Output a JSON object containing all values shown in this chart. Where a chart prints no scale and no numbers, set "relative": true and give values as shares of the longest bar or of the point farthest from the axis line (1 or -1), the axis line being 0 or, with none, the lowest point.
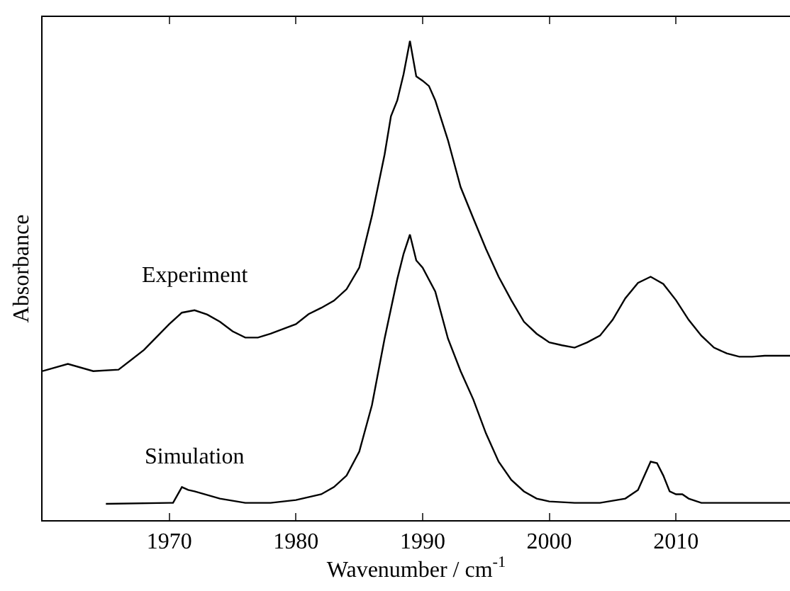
{
  "chart_data": {
    "type": "line",
    "relative": true,
    "xlabel": "Wavenumber / cm$^{-1}$",
    "ylabel": "Absorbance",
    "xlim": [
      1960,
      2019
    ],
    "xticks": [
      1970,
      1980,
      1990,
      2000,
      2010
    ],
    "grid": false,
    "legend": false,
    "marker": "none",
    "line_style": "solid",
    "series": [
      {
        "name": "Experiment",
        "color": "#000000",
        "x": [
          1960,
          1962,
          1964,
          1966,
          1968,
          1970,
          1971,
          1972,
          1973,
          1974,
          1975,
          1976,
          1977,
          1978,
          1979,
          1980,
          1981,
          1982,
          1983,
          1984,
          1985,
          1986,
          1987,
          1987.5,
          1988,
          1988.5,
          1989,
          1989.5,
          1990,
          1990.5,
          1991,
          1992,
          1993,
          1994,
          1995,
          1996,
          1997,
          1998,
          1999,
          2000,
          2001,
          2002,
          2003,
          2004,
          2005,
          2006,
          2007,
          2008,
          2009,
          2010,
          2011,
          2012,
          2013,
          2014,
          2015,
          2016,
          2017,
          2018,
          2019
        ],
        "values": [
          0.311,
          0.326,
          0.311,
          0.314,
          0.355,
          0.409,
          0.433,
          0.438,
          0.429,
          0.414,
          0.394,
          0.381,
          0.381,
          0.389,
          0.399,
          0.409,
          0.43,
          0.443,
          0.458,
          0.482,
          0.527,
          0.635,
          0.763,
          0.843,
          0.876,
          0.931,
          1.0,
          0.926,
          0.917,
          0.906,
          0.876,
          0.793,
          0.695,
          0.63,
          0.566,
          0.508,
          0.459,
          0.414,
          0.389,
          0.371,
          0.365,
          0.36,
          0.371,
          0.385,
          0.418,
          0.463,
          0.495,
          0.508,
          0.493,
          0.459,
          0.418,
          0.385,
          0.36,
          0.348,
          0.341,
          0.341,
          0.343,
          0.343,
          0.343
        ]
      },
      {
        "name": "Simulation",
        "color": "#000000",
        "x": [
          1965,
          1970,
          1970.3,
          1971,
          1971.5,
          1972,
          1974,
          1976,
          1978,
          1980,
          1982,
          1983,
          1984,
          1985,
          1986,
          1987,
          1988,
          1988.5,
          1989,
          1989.5,
          1990,
          1991,
          1992,
          1993,
          1994,
          1995,
          1996,
          1997,
          1998,
          1999,
          2000,
          2002,
          2004,
          2006,
          2007,
          2008,
          2008.5,
          2009,
          2009.5,
          2010,
          2010.5,
          2011,
          2012,
          2013,
          2019
        ],
        "values": [
          0.034,
          0.036,
          0.036,
          0.069,
          0.063,
          0.06,
          0.045,
          0.036,
          0.036,
          0.042,
          0.054,
          0.069,
          0.093,
          0.143,
          0.24,
          0.379,
          0.503,
          0.556,
          0.596,
          0.542,
          0.527,
          0.477,
          0.379,
          0.311,
          0.252,
          0.181,
          0.122,
          0.084,
          0.06,
          0.045,
          0.039,
          0.036,
          0.036,
          0.045,
          0.063,
          0.122,
          0.119,
          0.093,
          0.06,
          0.054,
          0.054,
          0.045,
          0.036,
          0.036,
          0.036
        ]
      }
    ]
  }
}
